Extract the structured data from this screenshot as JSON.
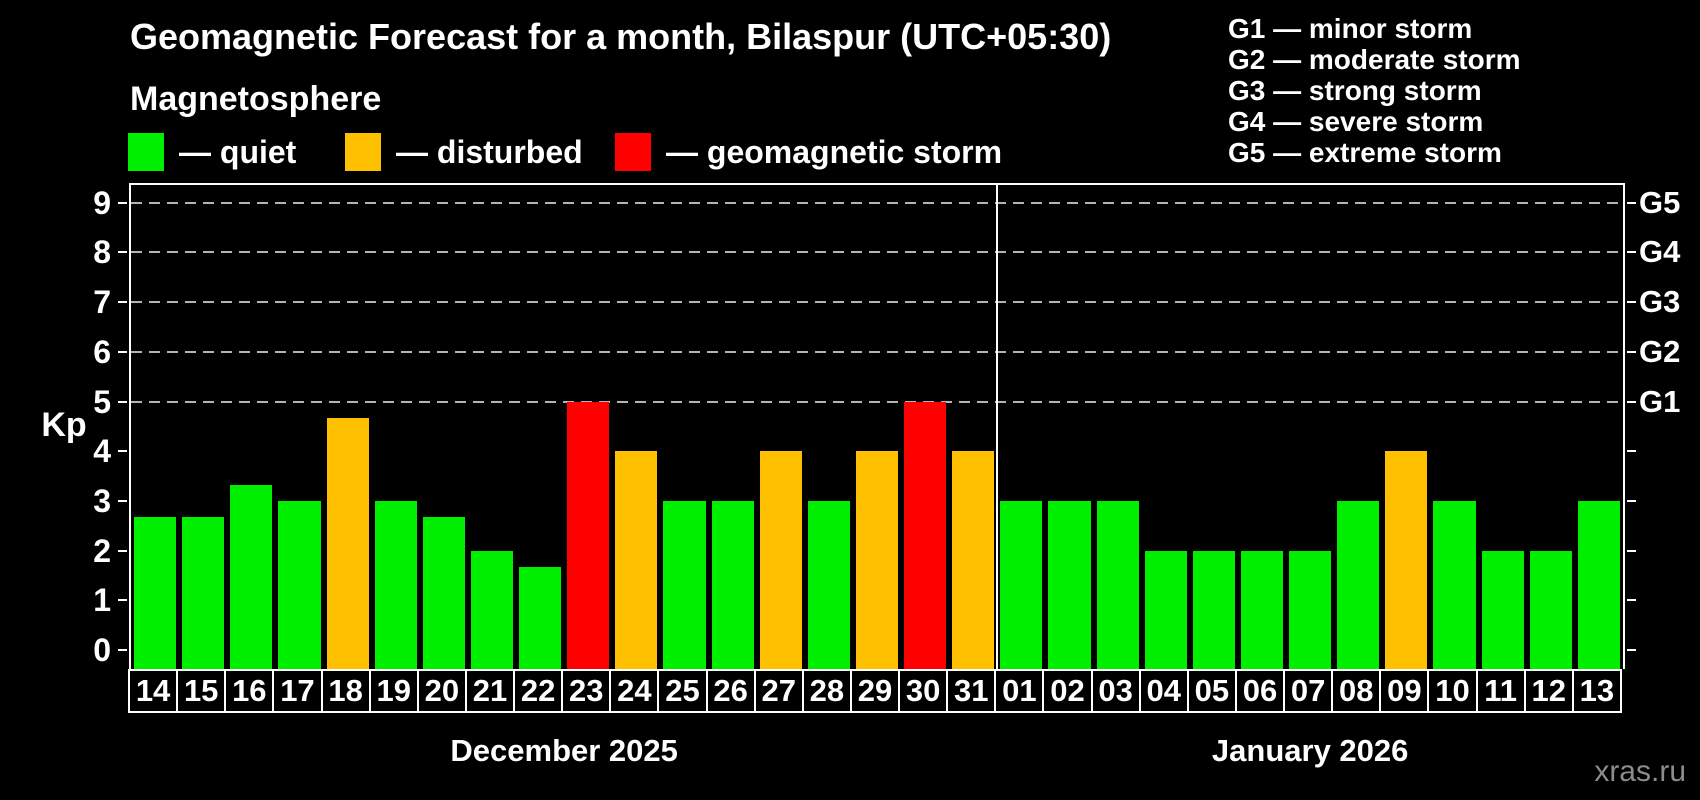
{
  "header": {
    "title": "Geomagnetic Forecast for a month, Bilaspur (UTC+05:30)",
    "subtitle": "Magnetosphere",
    "legend": [
      {
        "key": "quiet",
        "label": "— quiet",
        "color": "#00ee00"
      },
      {
        "key": "disturbed",
        "label": "— disturbed",
        "color": "#ffc000"
      },
      {
        "key": "storm",
        "label": "— geomagnetic storm",
        "color": "#ff0000"
      }
    ],
    "g_legend": [
      "G1 — minor storm",
      "G2 — moderate storm",
      "G3 — strong storm",
      "G4 — severe storm",
      "G5 — extreme storm"
    ]
  },
  "chart_data": {
    "type": "bar",
    "ylabel": "Kp",
    "ylim": [
      0,
      9.4
    ],
    "yticks": [
      0,
      1,
      2,
      3,
      4,
      5,
      6,
      7,
      8,
      9
    ],
    "gridlines_at": [
      5,
      6,
      7,
      8,
      9
    ],
    "grid": "dashed, only at storm levels Kp 5-9",
    "right_axis_labels": [
      {
        "value": 5,
        "label": "G1"
      },
      {
        "value": 6,
        "label": "G2"
      },
      {
        "value": 7,
        "label": "G3"
      },
      {
        "value": 8,
        "label": "G4"
      },
      {
        "value": 9,
        "label": "G5"
      }
    ],
    "months": [
      {
        "label": "December 2025",
        "days": 18
      },
      {
        "label": "January 2026",
        "days": 13
      }
    ],
    "categories": [
      "14",
      "15",
      "16",
      "17",
      "18",
      "19",
      "20",
      "21",
      "22",
      "23",
      "24",
      "25",
      "26",
      "27",
      "28",
      "29",
      "30",
      "31",
      "01",
      "02",
      "03",
      "04",
      "05",
      "06",
      "07",
      "08",
      "09",
      "10",
      "11",
      "12",
      "13"
    ],
    "values": [
      2.67,
      2.67,
      3.33,
      3.0,
      4.67,
      3.0,
      2.67,
      2.0,
      1.67,
      5.0,
      4.0,
      3.0,
      3.0,
      4.0,
      3.0,
      4.0,
      5.0,
      4.0,
      3.0,
      3.0,
      3.0,
      2.0,
      2.0,
      2.0,
      2.0,
      3.0,
      4.0,
      3.0,
      2.0,
      2.0,
      3.0
    ],
    "statuses": [
      "quiet",
      "quiet",
      "quiet",
      "quiet",
      "disturbed",
      "quiet",
      "quiet",
      "quiet",
      "quiet",
      "storm",
      "disturbed",
      "quiet",
      "quiet",
      "disturbed",
      "quiet",
      "disturbed",
      "storm",
      "disturbed",
      "quiet",
      "quiet",
      "quiet",
      "quiet",
      "quiet",
      "quiet",
      "quiet",
      "quiet",
      "disturbed",
      "quiet",
      "quiet",
      "quiet",
      "quiet"
    ],
    "colors": {
      "quiet": "#00ee00",
      "disturbed": "#ffc000",
      "storm": "#ff0000"
    }
  },
  "watermark": "xras.ru"
}
